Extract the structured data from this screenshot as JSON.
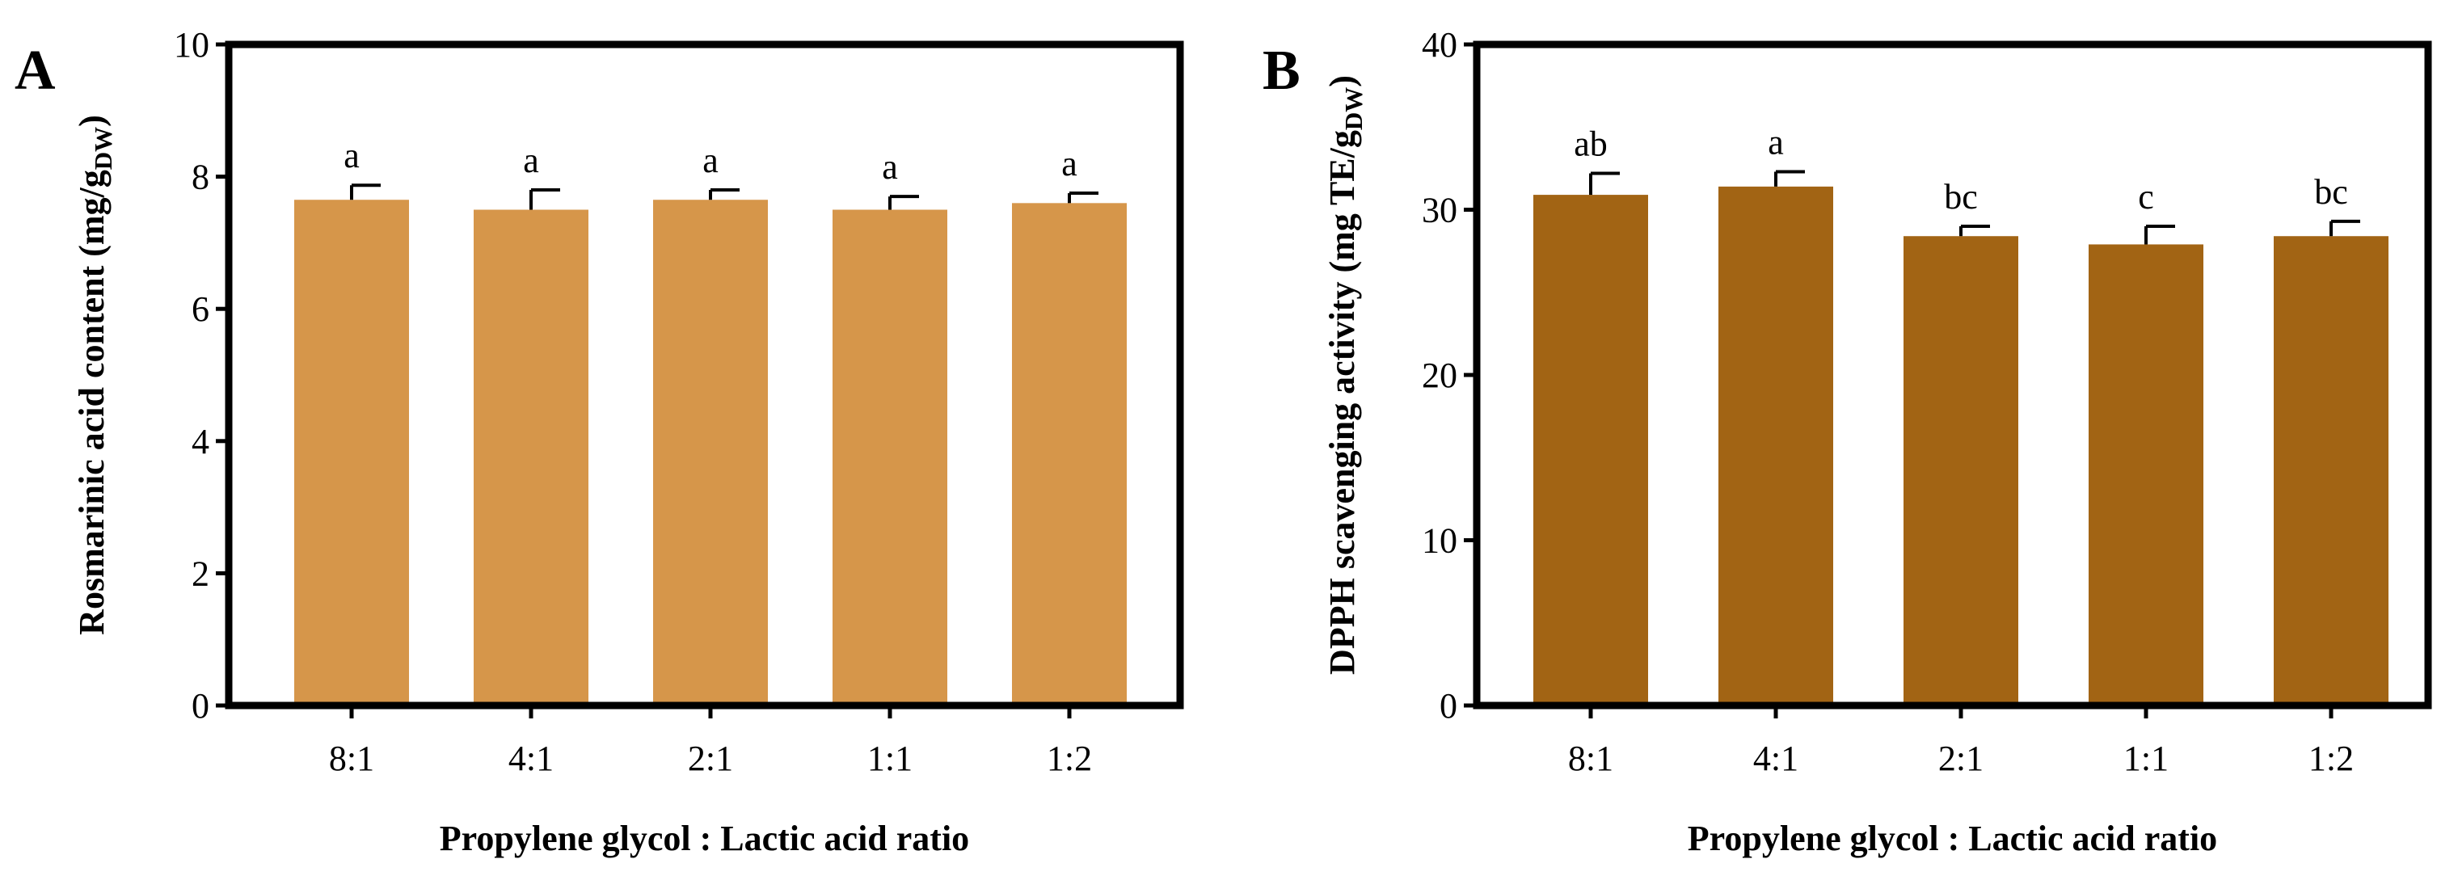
{
  "chart_data": [
    {
      "type": "bar",
      "panel_label": "A",
      "title": "",
      "xlabel": "Propylene glycol : Lactic acid ratio",
      "ylabel_main": "Rosmarinic acid content (mg/g",
      "ylabel_sub": "DW",
      "ylabel_end": ")",
      "categories": [
        "8:1",
        "4:1",
        "2:1",
        "1:1",
        "1:2"
      ],
      "values": [
        7.65,
        7.5,
        7.65,
        7.5,
        7.6
      ],
      "errors": [
        0.22,
        0.3,
        0.15,
        0.2,
        0.15
      ],
      "significance": [
        "a",
        "a",
        "a",
        "a",
        "a"
      ],
      "ylim": [
        0,
        10
      ],
      "yticks": [
        0,
        2,
        4,
        6,
        8,
        10
      ],
      "ytick_labels": [
        "0",
        "2",
        "4",
        "6",
        "8",
        "10"
      ],
      "bar_color": "#D6964A",
      "grid": false
    },
    {
      "type": "bar",
      "panel_label": "B",
      "title": "",
      "xlabel": "Propylene glycol : Lactic acid ratio",
      "ylabel_main": "DPPH  scavenging activity (mg TE/g",
      "ylabel_sub": "DW",
      "ylabel_end": ")",
      "categories": [
        "8:1",
        "4:1",
        "2:1",
        "1:1",
        "1:2"
      ],
      "values": [
        30.9,
        31.4,
        28.4,
        27.9,
        28.4
      ],
      "errors": [
        1.3,
        0.9,
        0.6,
        1.1,
        0.9
      ],
      "significance": [
        "ab",
        "a",
        "bc",
        "c",
        "bc"
      ],
      "ylim": [
        0,
        40
      ],
      "yticks": [
        0,
        10,
        20,
        30,
        40
      ],
      "ytick_labels": [
        "0",
        "10",
        "20",
        "30",
        "40"
      ],
      "bar_color": "#A26414",
      "grid": false
    }
  ]
}
